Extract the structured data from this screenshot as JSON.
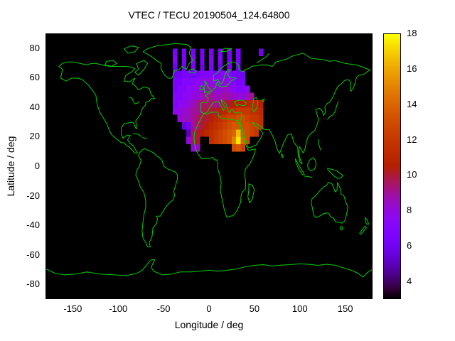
{
  "chart_data": {
    "type": "heatmap",
    "title": "VTEC / TECU 20190504_124.64800",
    "xlabel": "Longitude / deg",
    "ylabel": "Latitude / deg",
    "xlim": [
      -180,
      180
    ],
    "ylim": [
      -90,
      90
    ],
    "x_ticks": [
      -150,
      -100,
      -50,
      0,
      50,
      100,
      150
    ],
    "y_ticks": [
      80,
      60,
      40,
      20,
      0,
      -20,
      -40,
      -60,
      -80
    ],
    "grid_on": false,
    "legend": "none",
    "map": {
      "background": "#000000",
      "coastline_color": "#00cc00"
    },
    "colorbar": {
      "min": 3,
      "max": 18,
      "tick_values": [
        4,
        6,
        8,
        10,
        12,
        14,
        16,
        18
      ],
      "palette": "gnuplot default rgbformulae 7,5,15 (black-purple-red-orange-yellow)",
      "position": "right"
    },
    "heatmap_grid": {
      "units": "TECU",
      "lon_start": -40,
      "lat_top": 80,
      "dlon": 5,
      "dlat": 5,
      "rows": [
        [
          6.5,
          null,
          6.5,
          null,
          6.5,
          null,
          6.5,
          null,
          6.5,
          null,
          6.5,
          null,
          6.5,
          null,
          6.5,
          null,
          null,
          null,
          null,
          6
        ],
        [
          7,
          null,
          6.5,
          null,
          7,
          null,
          6.5,
          null,
          7,
          null,
          7,
          null,
          6.5,
          null,
          6.5,
          null,
          null,
          null,
          null,
          null
        ],
        [
          6,
          null,
          6,
          null,
          6.5,
          null,
          6,
          null,
          6.5,
          null,
          6,
          null,
          6.5,
          null,
          6,
          null,
          null,
          null,
          null,
          null
        ],
        [
          6,
          6,
          6.5,
          6.5,
          6,
          6.5,
          7,
          7,
          7,
          6.5,
          7,
          7.5,
          7,
          6.5,
          6,
          6,
          null,
          null,
          null,
          null
        ],
        [
          6.5,
          6.5,
          7,
          7,
          7,
          7.5,
          7.5,
          8,
          8,
          7.5,
          7.5,
          8,
          7.5,
          7,
          6.5,
          6.5,
          null,
          null,
          null,
          null
        ],
        [
          6.5,
          7,
          7,
          7.5,
          7.5,
          8,
          8,
          8.5,
          8.5,
          8,
          8,
          8.5,
          8,
          7.5,
          7,
          7,
          7.5,
          null,
          null,
          null
        ],
        [
          7,
          7,
          7.5,
          7.5,
          8,
          8,
          8.5,
          9,
          9,
          8.5,
          8.5,
          9,
          8.5,
          8.5,
          8,
          8,
          8.5,
          9,
          null,
          null
        ],
        [
          7,
          7.5,
          7.5,
          8,
          8.5,
          9,
          9.5,
          9.5,
          9.5,
          9,
          9.5,
          10,
          10,
          10.5,
          10.5,
          10.5,
          11,
          11,
          11,
          10.5
        ],
        [
          7.5,
          8,
          8,
          8.5,
          9,
          9,
          9.5,
          10,
          10,
          10,
          10.5,
          11,
          11.5,
          11.5,
          12,
          12,
          12,
          11.5,
          11.5,
          11
        ],
        [
          null,
          8,
          8.5,
          8.5,
          9,
          9.5,
          10,
          10,
          10.5,
          11,
          11.5,
          12,
          12.5,
          12.5,
          13,
          13,
          12.5,
          12,
          12,
          11.5
        ],
        [
          null,
          null,
          5.5,
          6,
          9,
          9.5,
          10,
          10.5,
          11,
          11.5,
          12,
          12.5,
          13,
          13.5,
          13.5,
          13,
          13,
          12.5,
          12,
          11.5
        ],
        [
          null,
          null,
          null,
          5,
          9.5,
          10,
          10.5,
          11,
          11.5,
          12,
          12.5,
          13,
          13.5,
          14,
          16.5,
          13.5,
          13,
          12.5,
          12,
          null
        ],
        [
          null,
          null,
          null,
          8,
          9.5,
          10,
          null,
          null,
          11.5,
          12,
          12.5,
          13,
          13.5,
          15,
          17.5,
          14,
          13,
          null,
          null,
          null
        ],
        [
          null,
          null,
          null,
          null,
          8,
          8.5,
          null,
          null,
          null,
          null,
          null,
          null,
          null,
          13,
          13.5,
          12.5,
          null,
          null,
          null,
          null
        ]
      ]
    }
  }
}
